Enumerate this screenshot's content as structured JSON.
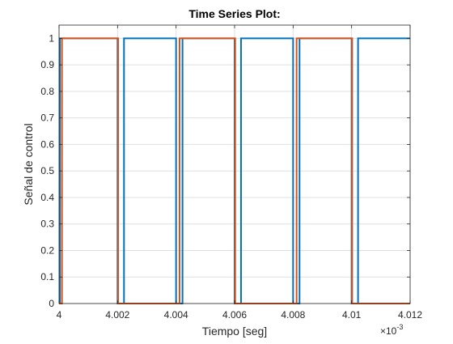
{
  "chart_data": {
    "type": "line",
    "title": "Time Series Plot:",
    "xlabel": "Tiempo [seg]",
    "ylabel": "Señal de control",
    "x_multiplier_label": "×10",
    "x_multiplier_exponent": "-3",
    "xlim": [
      4.0,
      4.012
    ],
    "ylim": [
      0,
      1.05
    ],
    "x_ticks": [
      4.0,
      4.002,
      4.004,
      4.006,
      4.008,
      4.01,
      4.012
    ],
    "x_tick_labels": [
      "4",
      "4.002",
      "4.004",
      "4.006",
      "4.008",
      "4.01",
      "4.012"
    ],
    "y_ticks": [
      0,
      0.1,
      0.2,
      0.3,
      0.4,
      0.5,
      0.6,
      0.7,
      0.8,
      0.9,
      1
    ],
    "y_tick_labels": [
      "0",
      "0.1",
      "0.2",
      "0.3",
      "0.4",
      "0.5",
      "0.6",
      "0.7",
      "0.8",
      "0.9",
      "1"
    ],
    "grid": true,
    "colors": {
      "series_1": "#0072BD",
      "series_2": "#D95319"
    },
    "series": [
      {
        "x": [
          4.0,
          4.00003,
          4.00003,
          4.002,
          4.002,
          4.00222,
          4.00222,
          4.004,
          4.004,
          4.00422,
          4.00422,
          4.006,
          4.006,
          4.00622,
          4.00622,
          4.008,
          4.008,
          4.00822,
          4.00822,
          4.01,
          4.01,
          4.01022,
          4.01022,
          4.012
        ],
        "y": [
          0,
          0,
          1,
          1,
          0,
          0,
          1,
          1,
          0,
          0,
          1,
          1,
          0,
          0,
          1,
          1,
          0,
          0,
          1,
          1,
          0,
          0,
          1,
          1
        ]
      },
      {
        "x": [
          4.0,
          4.0001,
          4.0001,
          4.00202,
          4.00202,
          4.00412,
          4.00412,
          4.00602,
          4.00602,
          4.00812,
          4.00812,
          4.01002,
          4.01002,
          4.012
        ],
        "y": [
          0,
          0,
          1,
          1,
          0,
          0,
          1,
          1,
          0,
          0,
          1,
          1,
          0,
          0
        ]
      }
    ]
  }
}
